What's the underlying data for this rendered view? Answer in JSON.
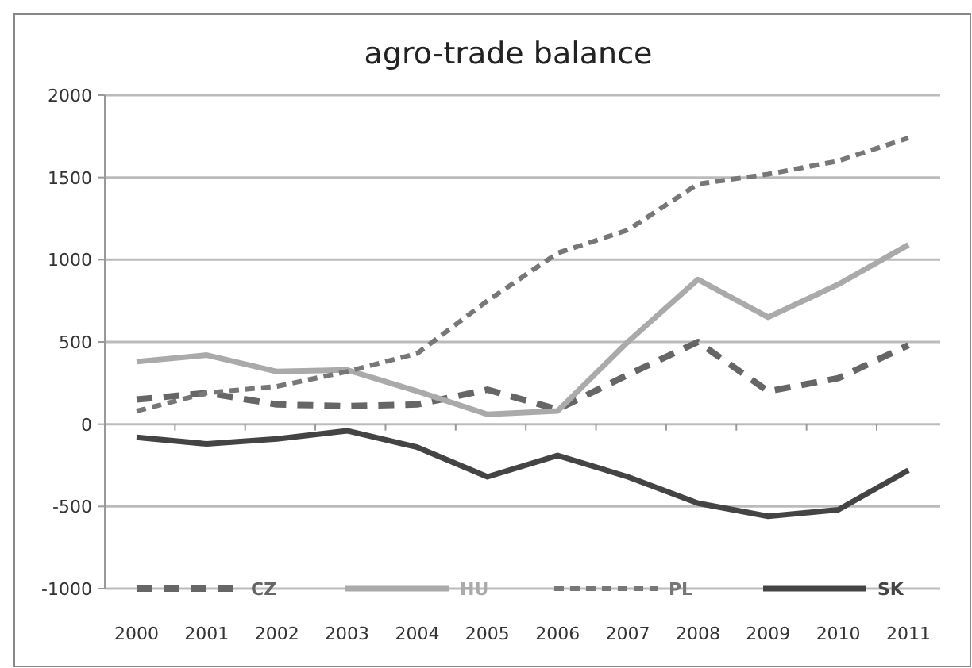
{
  "chart_data": {
    "type": "line",
    "title": "agro-trade balance",
    "categories": [
      "2000",
      "2001",
      "2002",
      "2003",
      "2004",
      "2005",
      "2006",
      "2007",
      "2008",
      "2009",
      "2010",
      "2011"
    ],
    "ylim": [
      -1000,
      2000
    ],
    "yticks": [
      -1000,
      -500,
      0,
      500,
      1000,
      1500,
      2000
    ],
    "grid": "y",
    "legend": "bottom",
    "series": [
      {
        "name": "CZ",
        "color": "#666666",
        "line_style": "dashed",
        "values": [
          150,
          190,
          120,
          110,
          120,
          210,
          90,
          300,
          500,
          200,
          280,
          480
        ]
      },
      {
        "name": "HU",
        "color": "#aaaaaa",
        "line_style": "solid",
        "values": [
          380,
          420,
          320,
          330,
          200,
          60,
          80,
          500,
          880,
          650,
          850,
          1090
        ]
      },
      {
        "name": "PL",
        "color": "#777777",
        "line_style": "dotted",
        "values": [
          80,
          190,
          230,
          320,
          430,
          750,
          1040,
          1180,
          1460,
          1520,
          1600,
          1740
        ]
      },
      {
        "name": "SK",
        "color": "#444444",
        "line_style": "solid",
        "values": [
          -80,
          -120,
          -90,
          -40,
          -140,
          -320,
          -190,
          -320,
          -480,
          -560,
          -520,
          -280
        ]
      }
    ]
  }
}
